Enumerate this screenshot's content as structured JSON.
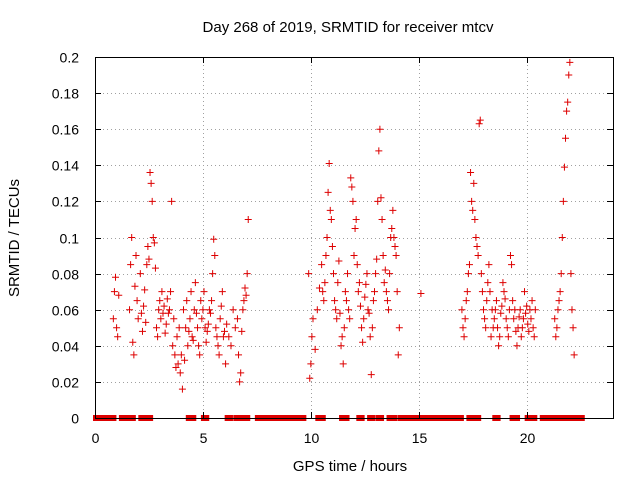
{
  "chart_data": {
    "type": "scatter",
    "title": "Day 268 of 2019, SRMTID for receiver mtcv",
    "xlabel": "GPS time / hours",
    "ylabel": "SRMTID / TECUs",
    "xlim": [
      0,
      24
    ],
    "ylim": [
      0,
      0.2
    ],
    "x_ticks": [
      0,
      5,
      10,
      15,
      20
    ],
    "x_tick_labels": [
      "0",
      "5",
      "10",
      "15",
      "20"
    ],
    "y_ticks": [
      0,
      0.02,
      0.04,
      0.06,
      0.08,
      0.1,
      0.12,
      0.14,
      0.16,
      0.18,
      0.2
    ],
    "y_tick_labels": [
      "0",
      "0.02",
      "0.04",
      "0.06",
      "0.08",
      "0.1",
      "0.12",
      "0.14",
      "0.16",
      "0.18",
      "0.2"
    ],
    "grid": true,
    "marker": "+",
    "color": "#dd0000",
    "series": [
      {
        "name": "SRMTID",
        "x": [
          0.85,
          0.9,
          0.95,
          1.0,
          1.05,
          1.1,
          1.6,
          1.65,
          1.7,
          1.75,
          1.8,
          1.85,
          1.9,
          1.95,
          2.0,
          2.1,
          2.15,
          2.2,
          2.25,
          2.3,
          2.35,
          2.4,
          2.45,
          2.5,
          2.55,
          2.6,
          2.65,
          2.7,
          2.75,
          2.8,
          2.85,
          2.9,
          2.95,
          3.0,
          3.05,
          3.1,
          3.15,
          3.2,
          3.25,
          3.3,
          3.35,
          3.4,
          3.45,
          3.5,
          3.55,
          3.6,
          3.65,
          3.7,
          3.75,
          3.8,
          3.85,
          3.9,
          3.95,
          4.0,
          4.05,
          4.1,
          4.15,
          4.2,
          4.25,
          4.3,
          4.35,
          4.4,
          4.45,
          4.5,
          4.55,
          4.6,
          4.65,
          4.7,
          4.75,
          4.8,
          4.85,
          4.9,
          4.95,
          5.0,
          5.05,
          5.1,
          5.15,
          5.2,
          5.25,
          5.3,
          5.35,
          5.4,
          5.45,
          5.5,
          5.55,
          5.6,
          5.65,
          5.7,
          5.75,
          5.8,
          5.85,
          5.9,
          5.95,
          6.0,
          6.05,
          6.1,
          6.2,
          6.3,
          6.4,
          6.5,
          6.6,
          6.65,
          6.7,
          6.75,
          6.8,
          6.85,
          6.9,
          6.95,
          7.0,
          7.05,
          7.1,
          9.9,
          9.95,
          10.0,
          10.05,
          10.1,
          10.2,
          10.3,
          10.4,
          10.5,
          10.55,
          10.6,
          10.65,
          10.7,
          10.75,
          10.8,
          10.85,
          10.9,
          10.95,
          11.0,
          11.05,
          11.1,
          11.15,
          11.2,
          11.25,
          11.3,
          11.35,
          11.4,
          11.45,
          11.5,
          11.55,
          11.6,
          11.65,
          11.7,
          11.75,
          11.8,
          11.85,
          11.9,
          11.95,
          12.0,
          12.05,
          12.1,
          12.15,
          12.2,
          12.25,
          12.3,
          12.35,
          12.4,
          12.45,
          12.5,
          12.55,
          12.6,
          12.65,
          12.7,
          12.75,
          12.8,
          12.85,
          12.9,
          12.95,
          13.0,
          13.05,
          13.1,
          13.15,
          13.2,
          13.25,
          13.3,
          13.35,
          13.4,
          13.45,
          13.5,
          13.55,
          13.6,
          13.65,
          13.7,
          13.75,
          13.8,
          13.85,
          13.9,
          13.95,
          14.0,
          14.05,
          14.1,
          15.1,
          17.0,
          17.05,
          17.1,
          17.15,
          17.2,
          17.25,
          17.3,
          17.35,
          17.4,
          17.45,
          17.5,
          17.55,
          17.6,
          17.65,
          17.7,
          17.75,
          17.8,
          17.85,
          17.9,
          17.95,
          18.0,
          18.05,
          18.1,
          18.15,
          18.2,
          18.25,
          18.3,
          18.35,
          18.4,
          18.45,
          18.5,
          18.55,
          18.6,
          18.65,
          18.7,
          18.75,
          18.8,
          18.85,
          18.9,
          18.95,
          19.0,
          19.05,
          19.1,
          19.15,
          19.2,
          19.25,
          19.3,
          19.35,
          19.4,
          19.45,
          19.5,
          19.55,
          19.6,
          19.65,
          19.7,
          19.75,
          19.8,
          19.85,
          19.9,
          19.95,
          20.0,
          20.05,
          20.1,
          20.15,
          20.2,
          20.25,
          20.3,
          20.35,
          20.4,
          21.3,
          21.35,
          21.4,
          21.45,
          21.5,
          21.55,
          21.6,
          21.65,
          21.7,
          21.75,
          21.8,
          21.85,
          21.9,
          21.95,
          22.0,
          22.05,
          22.1,
          22.15,
          22.2
        ],
        "y": [
          0.055,
          0.07,
          0.078,
          0.05,
          0.045,
          0.068,
          0.06,
          0.085,
          0.1,
          0.042,
          0.035,
          0.073,
          0.09,
          0.065,
          0.055,
          0.08,
          0.058,
          0.048,
          0.062,
          0.071,
          0.053,
          0.085,
          0.095,
          0.088,
          0.136,
          0.13,
          0.12,
          0.1,
          0.097,
          0.083,
          0.05,
          0.045,
          0.06,
          0.065,
          0.055,
          0.07,
          0.058,
          0.062,
          0.047,
          0.052,
          0.066,
          0.058,
          0.06,
          0.07,
          0.12,
          0.04,
          0.055,
          0.035,
          0.028,
          0.045,
          0.03,
          0.05,
          0.025,
          0.035,
          0.016,
          0.06,
          0.032,
          0.05,
          0.065,
          0.04,
          0.048,
          0.055,
          0.07,
          0.045,
          0.043,
          0.06,
          0.075,
          0.058,
          0.05,
          0.04,
          0.035,
          0.065,
          0.055,
          0.06,
          0.07,
          0.05,
          0.042,
          0.048,
          0.052,
          0.06,
          0.058,
          0.065,
          0.08,
          0.099,
          0.09,
          0.05,
          0.045,
          0.04,
          0.035,
          0.055,
          0.062,
          0.07,
          0.045,
          0.048,
          0.03,
          0.052,
          0.045,
          0.04,
          0.06,
          0.05,
          0.055,
          0.035,
          0.02,
          0.025,
          0.048,
          0.06,
          0.065,
          0.072,
          0.068,
          0.08,
          0.11,
          0.08,
          0.022,
          0.03,
          0.045,
          0.055,
          0.038,
          0.06,
          0.072,
          0.085,
          0.07,
          0.065,
          0.075,
          0.09,
          0.1,
          0.125,
          0.141,
          0.115,
          0.11,
          0.095,
          0.08,
          0.065,
          0.06,
          0.055,
          0.075,
          0.087,
          0.058,
          0.04,
          0.045,
          0.03,
          0.05,
          0.07,
          0.065,
          0.08,
          0.06,
          0.055,
          0.133,
          0.128,
          0.12,
          0.09,
          0.105,
          0.11,
          0.085,
          0.07,
          0.075,
          0.062,
          0.05,
          0.042,
          0.055,
          0.067,
          0.074,
          0.08,
          0.06,
          0.058,
          0.045,
          0.024,
          0.05,
          0.065,
          0.07,
          0.08,
          0.088,
          0.12,
          0.148,
          0.16,
          0.122,
          0.11,
          0.09,
          0.075,
          0.082,
          0.07,
          0.065,
          0.06,
          0.08,
          0.1,
          0.105,
          0.115,
          0.1,
          0.095,
          0.09,
          0.07,
          0.035,
          0.05,
          0.069,
          0.06,
          0.05,
          0.045,
          0.055,
          0.065,
          0.07,
          0.08,
          0.085,
          0.136,
          0.12,
          0.115,
          0.13,
          0.11,
          0.1,
          0.095,
          0.09,
          0.163,
          0.165,
          0.08,
          0.07,
          0.06,
          0.055,
          0.05,
          0.065,
          0.075,
          0.085,
          0.07,
          0.045,
          0.06,
          0.05,
          0.055,
          0.06,
          0.065,
          0.05,
          0.04,
          0.045,
          0.058,
          0.062,
          0.075,
          0.07,
          0.066,
          0.055,
          0.05,
          0.045,
          0.06,
          0.09,
          0.085,
          0.065,
          0.055,
          0.06,
          0.048,
          0.04,
          0.05,
          0.056,
          0.06,
          0.045,
          0.05,
          0.055,
          0.07,
          0.058,
          0.062,
          0.052,
          0.048,
          0.06,
          0.055,
          0.065,
          0.05,
          0.045,
          0.06,
          0.055,
          0.045,
          0.05,
          0.06,
          0.065,
          0.07,
          0.08,
          0.1,
          0.12,
          0.139,
          0.155,
          0.17,
          0.175,
          0.19,
          0.197,
          0.08,
          0.06,
          0.05,
          0.035
        ]
      }
    ],
    "zero_band": {
      "name": "zero values along x-axis",
      "intervals": [
        [
          0.0,
          0.9
        ],
        [
          1.2,
          1.8
        ],
        [
          2.1,
          2.6
        ],
        [
          4.3,
          4.6
        ],
        [
          5.0,
          5.2
        ],
        [
          6.1,
          6.3
        ],
        [
          6.5,
          7.1
        ],
        [
          7.5,
          9.7
        ],
        [
          10.3,
          10.6
        ],
        [
          11.4,
          11.7
        ],
        [
          12.2,
          12.4
        ],
        [
          12.7,
          12.9
        ],
        [
          13.1,
          13.3
        ],
        [
          13.6,
          13.9
        ],
        [
          14.1,
          17.0
        ],
        [
          17.3,
          17.8
        ],
        [
          18.5,
          18.7
        ],
        [
          19.3,
          19.6
        ],
        [
          20.0,
          20.4
        ],
        [
          20.7,
          21.9
        ],
        [
          22.0,
          22.6
        ]
      ]
    }
  }
}
